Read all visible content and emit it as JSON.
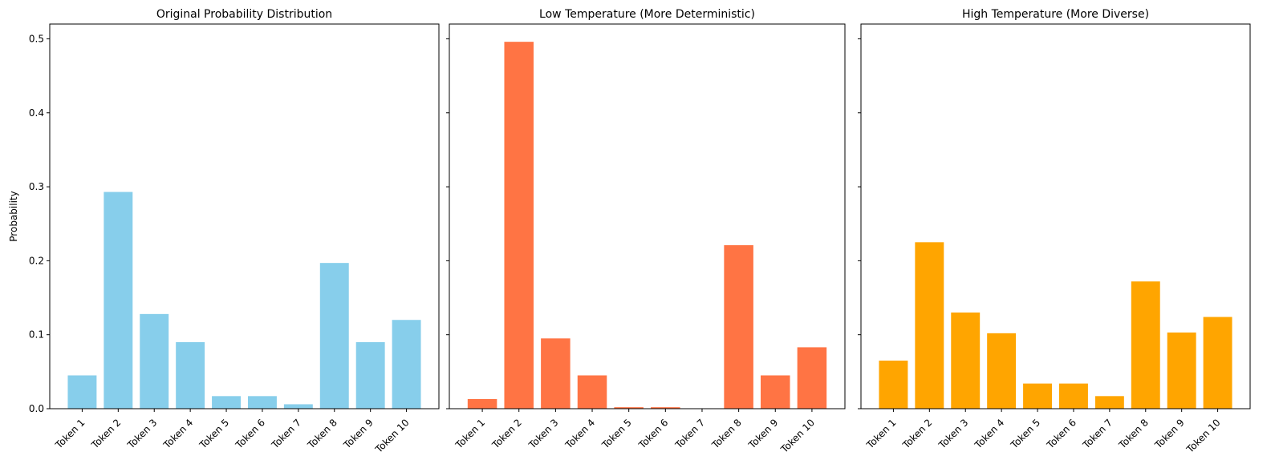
{
  "chart_data": [
    {
      "type": "bar",
      "title": "Original Probability Distribution",
      "xlabel": "",
      "ylabel": "Probability",
      "ylim": [
        0,
        0.52
      ],
      "yticks": [
        "0.0",
        "0.1",
        "0.2",
        "0.3",
        "0.4",
        "0.5"
      ],
      "categories": [
        "Token 1",
        "Token 2",
        "Token 3",
        "Token 4",
        "Token 5",
        "Token 6",
        "Token 7",
        "Token 8",
        "Token 9",
        "Token 10"
      ],
      "values": [
        0.045,
        0.293,
        0.128,
        0.09,
        0.017,
        0.017,
        0.006,
        0.197,
        0.09,
        0.12
      ],
      "color": "#87CEEB"
    },
    {
      "type": "bar",
      "title": "Low Temperature (More Deterministic)",
      "xlabel": "",
      "ylabel": "",
      "ylim": [
        0,
        0.52
      ],
      "categories": [
        "Token 1",
        "Token 2",
        "Token 3",
        "Token 4",
        "Token 5",
        "Token 6",
        "Token 7",
        "Token 8",
        "Token 9",
        "Token 10"
      ],
      "values": [
        0.013,
        0.496,
        0.095,
        0.045,
        0.002,
        0.002,
        0.0002,
        0.221,
        0.045,
        0.083
      ],
      "color": "#FF7444"
    },
    {
      "type": "bar",
      "title": "High Temperature (More Diverse)",
      "xlabel": "",
      "ylabel": "",
      "ylim": [
        0,
        0.52
      ],
      "categories": [
        "Token 1",
        "Token 2",
        "Token 3",
        "Token 4",
        "Token 5",
        "Token 6",
        "Token 7",
        "Token 8",
        "Token 9",
        "Token 10"
      ],
      "values": [
        0.065,
        0.225,
        0.13,
        0.102,
        0.034,
        0.034,
        0.017,
        0.172,
        0.103,
        0.124
      ],
      "color": "#FFA500"
    }
  ]
}
